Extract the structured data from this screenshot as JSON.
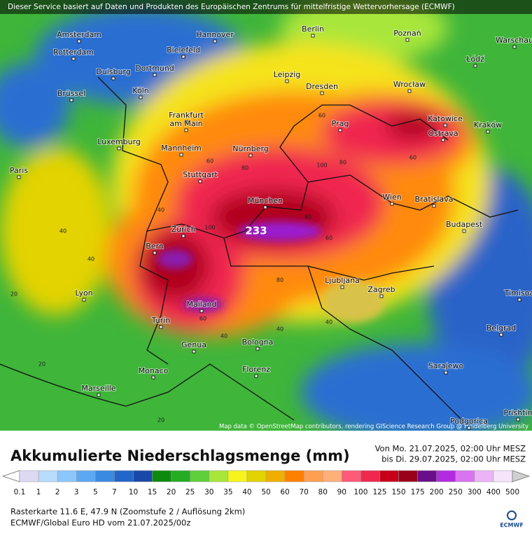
{
  "header": {
    "text": "Dieser Service basiert auf Daten und Produkten des Europäischen Zentrums für mittelfristige Wettervorhersage (ECMWF)"
  },
  "map": {
    "cities": [
      "Amsterdam",
      "Hannover",
      "Berlin",
      "Poznań",
      "Warschau",
      "Rotterdam",
      "Bielefeld",
      "Łódź",
      "Duisburg",
      "Dortmund",
      "Leipzig",
      "Brüssel",
      "Köln",
      "Dresden",
      "Wrocław",
      "Frankfurt",
      "am Main",
      "Prag",
      "Katowice",
      "Ostrava",
      "Kraków",
      "Luxemburg",
      "Mannheim",
      "Nürnberg",
      "Paris",
      "Stuttgart",
      "Wien",
      "Bratislava",
      "München",
      "Zürich",
      "Budapest",
      "Bern",
      "Ljubljana",
      "Zagreb",
      "Lyon",
      "Timisoa",
      "Mailand",
      "Turin",
      "Belgrad",
      "Genua",
      "Bologna",
      "Sarajewo",
      "Monaco",
      "Florenz",
      "Marseille",
      "Podgorica",
      "Prishtin"
    ],
    "max_label": "233",
    "contour_labels": [
      "40",
      "60",
      "80",
      "100",
      "80",
      "60",
      "40",
      "20",
      "60",
      "80",
      "100",
      "60",
      "40",
      "20",
      "40",
      "60",
      "80",
      "40",
      "20",
      "40"
    ],
    "attribution": "Map data © OpenStreetMap contributors, rendering GIScience Research Group @ Heidelberg University"
  },
  "title": "Akkumulierte Niederschlagsmenge (mm)",
  "period": [
    "Von Mo. 21.07.2025, 02:00 Uhr MESZ",
    "bis Di. 29.07.2025, 02:00 Uhr MESZ"
  ],
  "legend": {
    "labels": [
      "0.1",
      "1",
      "2",
      "3",
      "5",
      "7",
      "10",
      "15",
      "20",
      "25",
      "30",
      "35",
      "40",
      "50",
      "60",
      "70",
      "80",
      "90",
      "100",
      "125",
      "150",
      "175",
      "200",
      "250",
      "300",
      "400",
      "500"
    ],
    "colors": [
      "#ddd9f3",
      "#b8dcfc",
      "#8cc6fb",
      "#5ca9f2",
      "#3a8ae3",
      "#2366c9",
      "#1a48a8",
      "#0c8a0c",
      "#24ad24",
      "#5fcf3a",
      "#a8e63a",
      "#f5f51c",
      "#e3d300",
      "#f0ae00",
      "#ff7f00",
      "#ff9f50",
      "#ffb07a",
      "#ff5a78",
      "#f0284f",
      "#c8001a",
      "#9a0018",
      "#6a0e8a",
      "#b32be0",
      "#d974f0",
      "#eab4f6",
      "#f5e4fa",
      "#d0d0d0"
    ]
  },
  "footer": [
    "Rasterkarte 11.6 E, 47.9 N (Zoomstufe 2 / Auflösung 2km)",
    "ECMWF/Global Euro HD vom  21.07.2025/00z"
  ],
  "logo": "ECMWF"
}
